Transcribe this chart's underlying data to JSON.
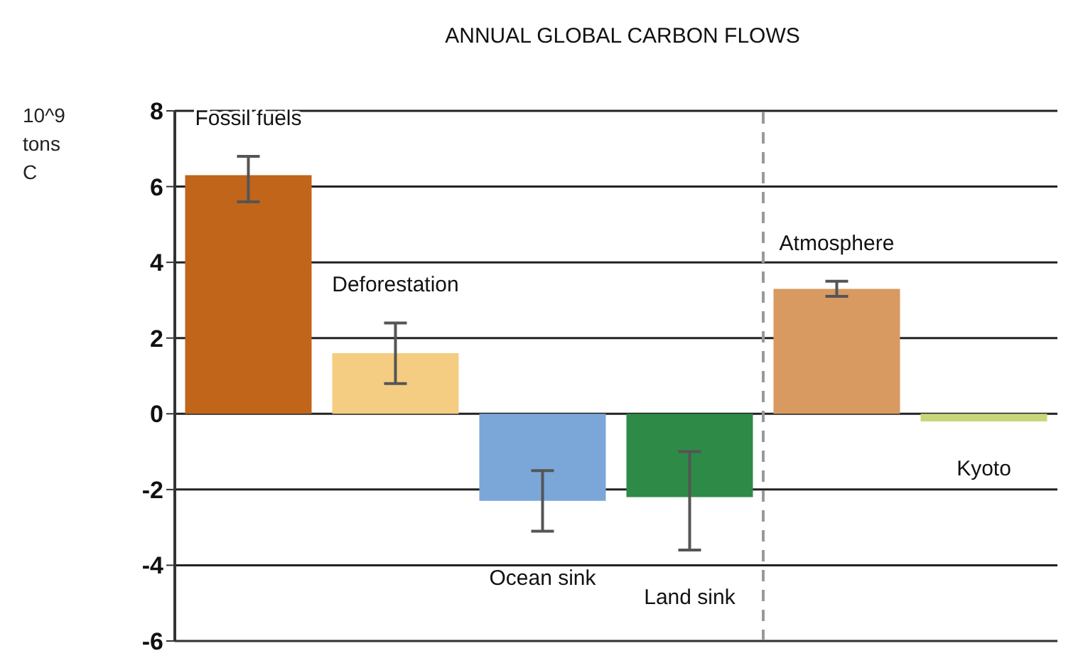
{
  "chart_data": {
    "type": "bar",
    "title": "ANNUAL GLOBAL CARBON FLOWS",
    "ylabel": "10^9 tons C",
    "categories": [
      "Fossil fuels",
      "Deforestation",
      "Ocean sink",
      "Land sink",
      "Atmosphere",
      "Kyoto"
    ],
    "values": [
      6.3,
      1.6,
      -2.3,
      -2.2,
      3.3,
      -0.2
    ],
    "colors": [
      "#c0651a",
      "#f5cd82",
      "#7aa7d8",
      "#2e8b47",
      "#d99a62",
      "#c8d77a"
    ],
    "errors": [
      [
        5.6,
        6.8
      ],
      [
        0.8,
        2.4
      ],
      [
        -3.1,
        -1.5
      ],
      [
        -3.6,
        -1.0
      ],
      [
        3.1,
        3.5
      ],
      null
    ],
    "ref_lines": [
      {
        "axis": "x",
        "value": "Atmosphere",
        "color": "#999999",
        "line_style": "dashed"
      }
    ],
    "ylim": [
      -6,
      8
    ],
    "yticks": [
      -6,
      -4,
      -2,
      0,
      2,
      4,
      6,
      8
    ],
    "grid": "y",
    "legend": false
  }
}
